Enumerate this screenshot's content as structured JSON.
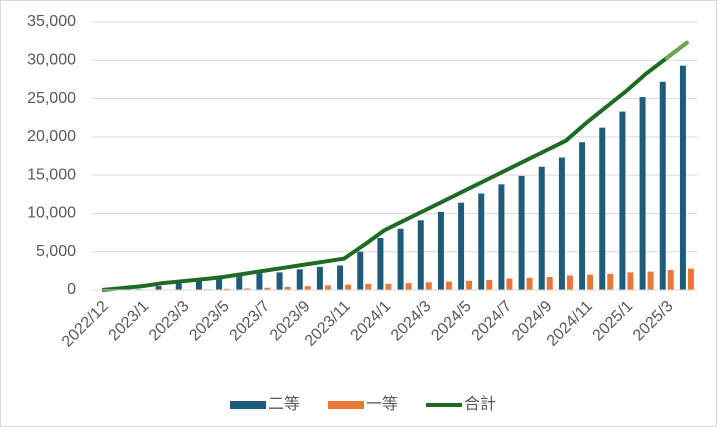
{
  "chart_data": {
    "type": "bar_line",
    "categories": [
      "2022/12",
      null,
      "2023/1",
      null,
      "2023/3",
      null,
      "2023/5",
      null,
      "2023/7",
      null,
      "2023/9",
      null,
      "2023/11",
      null,
      "2024/1",
      null,
      "2024/3",
      null,
      "2024/5",
      null,
      "2024/7",
      null,
      "2024/9",
      null,
      "2024/11",
      null,
      "2025/1",
      null,
      "2025/3",
      null
    ],
    "series": [
      {
        "name": "二等",
        "type": "bar",
        "color": "#1f5b7a",
        "values": [
          0,
          0,
          100,
          500,
          900,
          1300,
          1700,
          2000,
          2200,
          2300,
          2700,
          3000,
          3200,
          5000,
          6800,
          8000,
          9100,
          10200,
          11400,
          12600,
          13800,
          14900,
          16100,
          17300,
          19300,
          21200,
          23300,
          25200,
          27200,
          29300
        ]
      },
      {
        "name": "一等",
        "type": "bar",
        "color": "#e8773a",
        "values": [
          0,
          0,
          0,
          30,
          60,
          100,
          150,
          200,
          300,
          400,
          500,
          600,
          700,
          800,
          800,
          900,
          1000,
          1100,
          1200,
          1300,
          1500,
          1600,
          1700,
          1900,
          2000,
          2100,
          2300,
          2400,
          2600,
          2800
        ]
      },
      {
        "name": "合計",
        "type": "line",
        "color": "#1e6b24",
        "last_segment_color": "#6aaa45",
        "values": [
          0,
          250,
          500,
          900,
          1150,
          1400,
          1700,
          2100,
          2500,
          2900,
          3300,
          3700,
          4100,
          5900,
          7800,
          9100,
          10400,
          11700,
          13000,
          14300,
          15600,
          16900,
          18200,
          19500,
          21800,
          23900,
          26000,
          28300,
          30300,
          32300
        ]
      }
    ],
    "ylim": [
      0,
      35000
    ],
    "yticks": [
      0,
      {
        "value": 5000,
        "label": "5,000"
      },
      {
        "value": 10000,
        "label": "10,000"
      },
      {
        "value": 15000,
        "label": "15,000"
      },
      {
        "value": 20000,
        "label": "20,000"
      },
      {
        "value": 25000,
        "label": "25,000"
      },
      {
        "value": 30000,
        "label": "30,000"
      },
      {
        "value": 35000,
        "label": "35,000"
      }
    ],
    "grid": true,
    "legend": "bottom"
  }
}
